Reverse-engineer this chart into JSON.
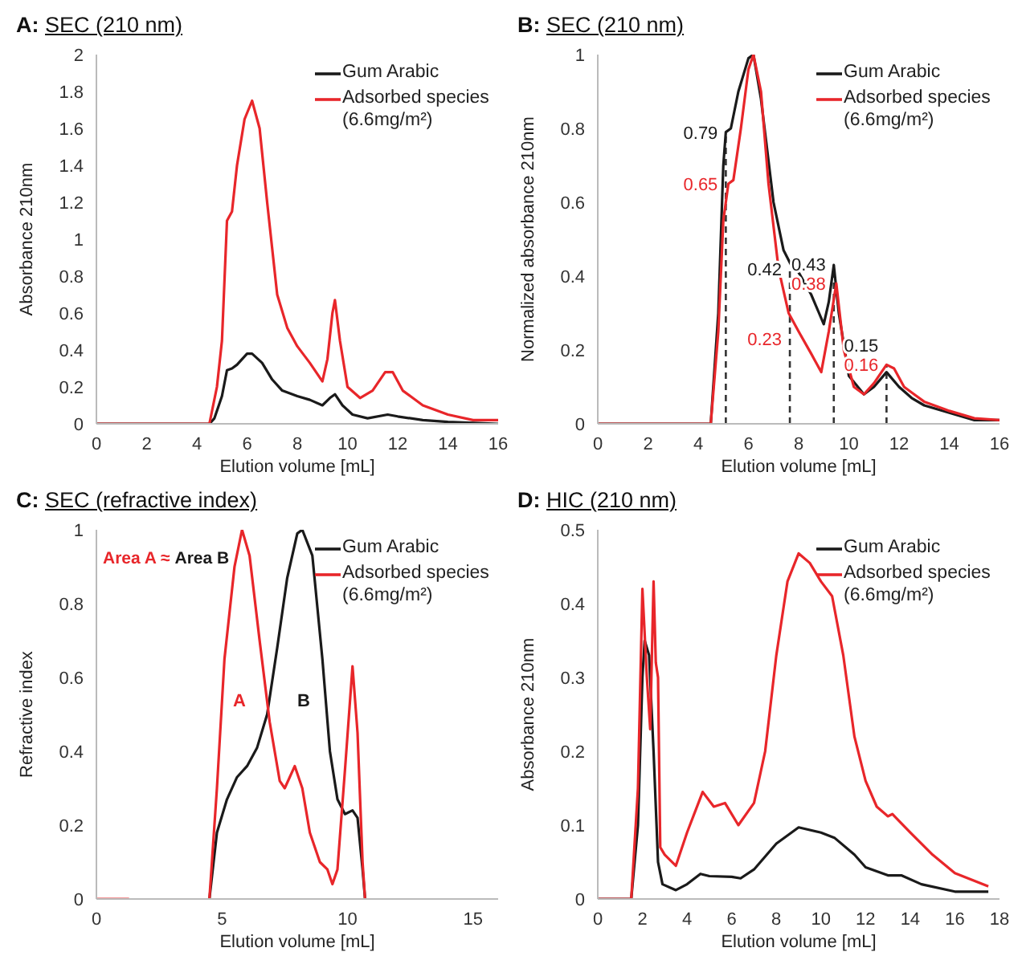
{
  "chart_data": [
    {
      "type": "line",
      "title": "A: SEC (210 nm)",
      "xlabel": "Elution volume [mL]",
      "ylabel": "Absorbance 210nm",
      "xlim": [
        0,
        16
      ],
      "xticks": [
        0,
        2,
        4,
        6,
        8,
        10,
        12,
        14,
        16
      ],
      "ylim": [
        0,
        2
      ],
      "yticks": [
        0,
        0.2,
        0.4,
        0.6,
        0.8,
        1,
        1.2,
        1.4,
        1.6,
        1.8,
        2
      ],
      "legend": "top right",
      "series": [
        {
          "name": "Gum Arabic",
          "color": "#1a1a1a",
          "x": [
            0,
            4.5,
            4.7,
            5,
            5.2,
            5.4,
            5.6,
            6,
            6.2,
            6.6,
            7,
            7.4,
            8,
            8.5,
            9,
            9.3,
            9.5,
            9.8,
            10.2,
            10.8,
            11.6,
            12,
            13,
            14,
            16
          ],
          "values": [
            0,
            0,
            0.03,
            0.15,
            0.29,
            0.3,
            0.32,
            0.38,
            0.38,
            0.33,
            0.24,
            0.18,
            0.15,
            0.13,
            0.1,
            0.14,
            0.16,
            0.1,
            0.05,
            0.03,
            0.05,
            0.04,
            0.02,
            0.01,
            0
          ]
        },
        {
          "name": "Adsorbed species (6.6mg/m²)",
          "color": "#e8262a",
          "x": [
            0,
            4.5,
            4.8,
            5,
            5.2,
            5.4,
            5.6,
            5.9,
            6.2,
            6.5,
            6.8,
            7.2,
            7.6,
            8,
            8.5,
            9,
            9.2,
            9.4,
            9.5,
            9.7,
            10,
            10.5,
            11,
            11.5,
            11.8,
            12.2,
            12.6,
            13,
            14,
            15,
            16
          ],
          "values": [
            0,
            0,
            0.2,
            0.45,
            1.1,
            1.15,
            1.4,
            1.65,
            1.75,
            1.6,
            1.2,
            0.7,
            0.52,
            0.42,
            0.33,
            0.23,
            0.35,
            0.6,
            0.67,
            0.45,
            0.2,
            0.14,
            0.18,
            0.28,
            0.28,
            0.18,
            0.14,
            0.1,
            0.05,
            0.02,
            0.02
          ]
        }
      ]
    },
    {
      "type": "line",
      "title": "B: SEC (210 nm)",
      "xlabel": "Elution volume [mL]",
      "ylabel": "Normalized absorbance 210nm",
      "xlim": [
        0,
        16
      ],
      "xticks": [
        0,
        2,
        4,
        6,
        8,
        10,
        12,
        14,
        16
      ],
      "ylim": [
        0,
        1
      ],
      "yticks": [
        0,
        0.2,
        0.4,
        0.6,
        0.8,
        1
      ],
      "legend": "top right",
      "series": [
        {
          "name": "Gum Arabic",
          "color": "#1a1a1a",
          "x": [
            0,
            4,
            4.5,
            4.8,
            5,
            5.1,
            5.3,
            5.6,
            6,
            6.2,
            6.5,
            7,
            7.4,
            7.7,
            8,
            8.5,
            9,
            9.2,
            9.4,
            9.6,
            10,
            10.6,
            11,
            11.5,
            12,
            12.5,
            13,
            14,
            15,
            16
          ],
          "values": [
            0,
            0,
            0,
            0.3,
            0.7,
            0.79,
            0.8,
            0.9,
            0.99,
            1,
            0.88,
            0.6,
            0.47,
            0.43,
            0.41,
            0.35,
            0.27,
            0.33,
            0.43,
            0.3,
            0.13,
            0.08,
            0.1,
            0.14,
            0.1,
            0.07,
            0.05,
            0.03,
            0.01,
            0.01
          ]
        },
        {
          "name": "Adsorbed species (6.6mg/m²)",
          "color": "#e8262a",
          "x": [
            0,
            4,
            4.5,
            4.8,
            5,
            5.2,
            5.4,
            5.7,
            6,
            6.2,
            6.5,
            6.8,
            7.2,
            7.6,
            8,
            8.5,
            8.9,
            9.2,
            9.5,
            9.8,
            10.2,
            10.6,
            11,
            11.5,
            11.8,
            12.2,
            12.6,
            13,
            14,
            15,
            16
          ],
          "values": [
            0,
            0,
            0,
            0.25,
            0.55,
            0.65,
            0.66,
            0.8,
            0.96,
            1,
            0.9,
            0.65,
            0.42,
            0.3,
            0.25,
            0.19,
            0.14,
            0.25,
            0.38,
            0.2,
            0.1,
            0.08,
            0.11,
            0.16,
            0.15,
            0.1,
            0.08,
            0.06,
            0.035,
            0.015,
            0.01
          ]
        }
      ],
      "ref_lines": [
        {
          "axis": "x",
          "value": 5.1,
          "line_style": "dashed",
          "color": "#333333"
        },
        {
          "axis": "x",
          "value": 7.65,
          "line_style": "dashed",
          "color": "#333333"
        },
        {
          "axis": "x",
          "value": 9.4,
          "line_style": "dashed",
          "color": "#333333"
        },
        {
          "axis": "x",
          "value": 11.5,
          "line_style": "dashed",
          "color": "#333333"
        }
      ],
      "annotations": [
        {
          "text": "0.79",
          "x": 5.1,
          "y": 0.79
        },
        {
          "text": "0.65",
          "x": 5.1,
          "y": 0.65
        },
        {
          "text": "0.42",
          "x": 7.65,
          "y": 0.42
        },
        {
          "text": "0.23",
          "x": 7.65,
          "y": 0.23
        },
        {
          "text": "0.43",
          "x": 9.4,
          "y": 0.43
        },
        {
          "text": "0.38",
          "x": 9.4,
          "y": 0.38
        },
        {
          "text": "0.15",
          "x": 11.5,
          "y": 0.15
        },
        {
          "text": "0.16",
          "x": 11.5,
          "y": 0.16
        }
      ]
    },
    {
      "type": "line",
      "title": "C: SEC (refractive index)",
      "xlabel": "Elution volume [mL]",
      "ylabel": "Refractive index",
      "xlim": [
        0,
        16
      ],
      "xticks": [
        0,
        5,
        10,
        15
      ],
      "ylim": [
        0,
        1
      ],
      "yticks": [
        0,
        0.2,
        0.4,
        0.6,
        0.8,
        1
      ],
      "legend": "top right",
      "series": [
        {
          "name": "Gum Arabic",
          "color": "#1a1a1a",
          "x": [
            4.5,
            4.8,
            5.2,
            5.6,
            6,
            6.4,
            6.8,
            7.2,
            7.6,
            8,
            8.2,
            8.6,
            9,
            9.3,
            9.6,
            9.9,
            10.2,
            10.4,
            10.6,
            10.7
          ],
          "values": [
            0,
            0.18,
            0.27,
            0.33,
            0.36,
            0.41,
            0.5,
            0.68,
            0.87,
            0.99,
            1,
            0.93,
            0.65,
            0.4,
            0.27,
            0.23,
            0.24,
            0.22,
            0.08,
            0
          ]
        },
        {
          "name": "Adsorbed species (6.6mg/m²)",
          "color": "#e8262a",
          "x": [
            0,
            1.3,
            2,
            4.5,
            4.8,
            5.1,
            5.5,
            5.8,
            6.1,
            6.5,
            6.9,
            7.3,
            7.5,
            7.9,
            8.2,
            8.5,
            8.9,
            9.2,
            9.4,
            9.6,
            9.9,
            10.2,
            10.4,
            10.6,
            10.7
          ],
          "values": [
            0,
            0,
            null,
            0,
            0.3,
            0.65,
            0.9,
            1,
            0.93,
            0.7,
            0.48,
            0.32,
            0.3,
            0.36,
            0.3,
            0.18,
            0.1,
            0.08,
            0.04,
            0.08,
            0.35,
            0.63,
            0.45,
            0.1,
            0
          ]
        }
      ],
      "annotations": [
        "Area A ≈",
        "Area B",
        "A",
        "B"
      ]
    },
    {
      "type": "line",
      "title": "D: HIC (210 nm)",
      "xlabel": "Elution volume [mL]",
      "ylabel": "Absorbance 210nm",
      "xlim": [
        0,
        18
      ],
      "xticks": [
        0,
        2,
        4,
        6,
        8,
        10,
        12,
        14,
        16,
        18
      ],
      "ylim": [
        0,
        0.5
      ],
      "yticks": [
        0,
        0.1,
        0.2,
        0.3,
        0.4,
        0.5
      ],
      "legend": "top right",
      "series": [
        {
          "name": "Gum Arabic",
          "color": "#1a1a1a",
          "x": [
            0,
            1.5,
            1.8,
            2,
            2.1,
            2.3,
            2.5,
            2.7,
            2.9,
            3.5,
            4,
            4.6,
            5,
            6,
            6.4,
            7,
            8,
            9,
            10,
            10.6,
            11.5,
            12,
            13,
            13.6,
            14.5,
            16,
            17.5
          ],
          "values": [
            0,
            0,
            0.1,
            0.3,
            0.35,
            0.33,
            0.2,
            0.05,
            0.02,
            0.012,
            0.02,
            0.034,
            0.031,
            0.03,
            0.028,
            0.04,
            0.075,
            0.097,
            0.09,
            0.083,
            0.06,
            0.043,
            0.032,
            0.032,
            0.02,
            0.01,
            0.01
          ]
        },
        {
          "name": "Adsorbed species (6.6mg/m²)",
          "color": "#e8262a",
          "x": [
            0,
            1.5,
            1.8,
            2,
            2.2,
            2.35,
            2.5,
            2.6,
            2.7,
            2.8,
            3,
            3.5,
            4,
            4.7,
            5.2,
            5.7,
            6.3,
            7,
            7.5,
            8,
            8.5,
            9,
            9.5,
            10,
            10.5,
            11,
            11.5,
            12,
            12.5,
            13,
            13.2,
            14,
            15,
            16,
            17.5
          ],
          "values": [
            0,
            0,
            0.15,
            0.42,
            0.3,
            0.23,
            0.43,
            0.32,
            0.3,
            0.07,
            0.06,
            0.045,
            0.09,
            0.145,
            0.125,
            0.13,
            0.1,
            0.13,
            0.2,
            0.33,
            0.43,
            0.468,
            0.455,
            0.43,
            0.41,
            0.33,
            0.22,
            0.16,
            0.125,
            0.112,
            0.115,
            0.09,
            0.06,
            0.035,
            0.017
          ]
        }
      ]
    }
  ]
}
